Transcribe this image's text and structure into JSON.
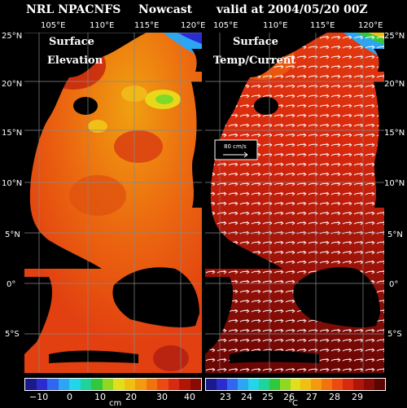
{
  "header": {
    "left": "NRL NPACNFS",
    "center": "Nowcast",
    "right": "valid at 2004/05/20 00Z"
  },
  "left_panel": {
    "title_line1": "Surface",
    "title_line2": "Elevation",
    "lon_ticks": [
      "105°E",
      "110°E",
      "115°E",
      "120°E"
    ],
    "lat_ticks": [
      "25°N",
      "20°N",
      "15°N",
      "10°N",
      "5°N",
      "0°",
      "5°S"
    ],
    "colorbar": {
      "labels": [
        "−10",
        "0",
        "10",
        "20",
        "30",
        "40"
      ],
      "unit": "cm",
      "colors": [
        "#1a1a8c",
        "#2b2bd0",
        "#2f67f0",
        "#2aa6f5",
        "#20d6e8",
        "#1fd49a",
        "#30c93a",
        "#90d820",
        "#e0e01a",
        "#f0c010",
        "#f59a0c",
        "#f2720c",
        "#ec4a10",
        "#d82a10",
        "#b01608",
        "#8a0a04"
      ]
    }
  },
  "right_panel": {
    "title_line1": "Surface",
    "title_line2": "Temp/Current",
    "lon_ticks": [
      "105°E",
      "110°E",
      "115°E",
      "120°E"
    ],
    "lat_ticks": [
      "25°N",
      "20°N",
      "15°N",
      "10°N",
      "5°N",
      "0°",
      "5°S"
    ],
    "legend_label": "80 cm/s",
    "colorbar": {
      "labels": [
        "23",
        "24",
        "25",
        "26",
        "27",
        "28",
        "29"
      ],
      "unit": "°C",
      "colors": [
        "#1a1a8c",
        "#2b2bd0",
        "#2f67f0",
        "#2aa6f5",
        "#20d6e8",
        "#1fd49a",
        "#30c93a",
        "#90d820",
        "#e0e01a",
        "#f0c010",
        "#f59a0c",
        "#f2720c",
        "#ec4a10",
        "#d82a10",
        "#b01608",
        "#8a0a04",
        "#5c0402"
      ]
    }
  }
}
